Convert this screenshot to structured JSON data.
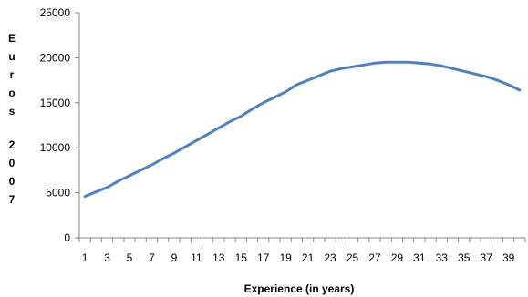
{
  "chart_data": {
    "type": "line",
    "xlabel": "Experience (in years)",
    "ylabel": "Euros 2007",
    "ylim": [
      0,
      25000
    ],
    "yticks": [
      0,
      5000,
      10000,
      15000,
      20000,
      25000
    ],
    "grid": false,
    "legend": "none",
    "line_color": "#4f81bd",
    "x": [
      1,
      2,
      3,
      4,
      5,
      6,
      7,
      8,
      9,
      10,
      11,
      12,
      13,
      14,
      15,
      16,
      17,
      18,
      19,
      20,
      21,
      22,
      23,
      24,
      25,
      26,
      27,
      28,
      29,
      30,
      31,
      32,
      33,
      34,
      35,
      36,
      37,
      38,
      39,
      40
    ],
    "xtick_labels": [
      1,
      3,
      5,
      7,
      9,
      11,
      13,
      15,
      17,
      19,
      21,
      23,
      25,
      27,
      29,
      31,
      33,
      35,
      37,
      39
    ],
    "series": [
      {
        "values": [
          4600,
          5100,
          5600,
          6300,
          6900,
          7500,
          8100,
          8800,
          9400,
          10100,
          10800,
          11500,
          12200,
          12900,
          13500,
          14300,
          15000,
          15600,
          16200,
          17000,
          17500,
          18000,
          18500,
          18800,
          19000,
          19200,
          19400,
          19500,
          19500,
          19500,
          19400,
          19300,
          19100,
          18800,
          18500,
          18200,
          17900,
          17500,
          17000,
          16400
        ]
      }
    ]
  }
}
